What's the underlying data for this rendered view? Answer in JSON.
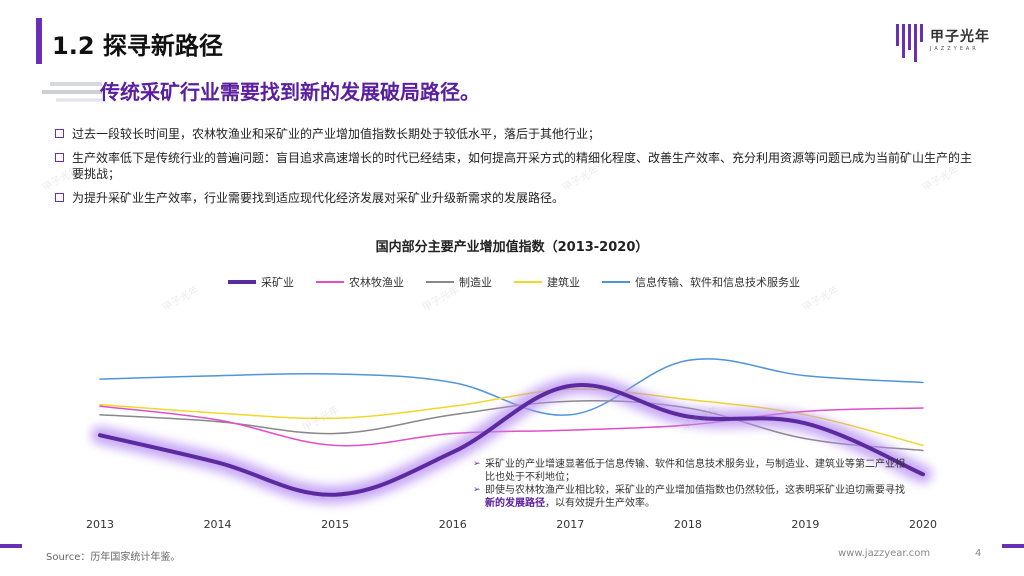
{
  "header": {
    "section_title": "1.2 探寻新路径",
    "logo_text": "甲子光年",
    "logo_sub": "JAZZYEAR"
  },
  "headline": "传统采矿行业需要找到新的发展破局路径。",
  "bullets": [
    "过去一段较长时间里，农林牧渔业和采矿业的产业增加值指数长期处于较低水平，落后于其他行业；",
    "生产效率低下是传统行业的普遍问题：盲目追求高速增长的时代已经结束，如何提高开采方式的精细化程度、改善生产效率、充分利用资源等问题已成为当前矿山生产的主要挑战；",
    "为提升采矿业生产效率，行业需要找到适应现代化经济发展对采矿业升级新需求的发展路径。"
  ],
  "notes": {
    "item1": "采矿业的产业增速显著低于信息传输、软件和信息技术服务业，与制造业、建筑业等第二产业相比也处于不利地位；",
    "item2_pre": "即使与农林牧渔产业相比较，采矿业的产业增加值指数也仍然较低，这表明采矿业迫切需要寻找",
    "item2_hl": "新的发展路径",
    "item2_post": "，以有效提升生产效率。"
  },
  "chart_data": {
    "type": "line",
    "title": "国内部分主要产业增加值指数（2013-2020）",
    "categories": [
      "2013",
      "2014",
      "2015",
      "2016",
      "2017",
      "2018",
      "2019",
      "2020"
    ],
    "xlabel": "",
    "ylabel": "",
    "ylim": [
      0,
      100
    ],
    "grid": false,
    "legend_position": "top",
    "series": [
      {
        "name": "采矿业",
        "color": "#5b2a9e",
        "highlight": true,
        "values": [
          44,
          28,
          9,
          34,
          73,
          55,
          51,
          21
        ]
      },
      {
        "name": "农林牧渔业",
        "color": "#e04fc8",
        "values": [
          61,
          53,
          38,
          45,
          47,
          50,
          58,
          60
        ]
      },
      {
        "name": "制造业",
        "color": "#888888",
        "values": [
          56,
          52,
          45,
          56,
          64,
          60,
          42,
          35
        ]
      },
      {
        "name": "建筑业",
        "color": "#f2d72a",
        "values": [
          62,
          57,
          54,
          61,
          71,
          65,
          56,
          38
        ]
      },
      {
        "name": "信息传输、软件和信息技术服务业",
        "color": "#4f94d9",
        "values": [
          77,
          79,
          80,
          75,
          56,
          88,
          79,
          75
        ]
      }
    ]
  },
  "footer": {
    "source": "Source：历年国家统计年鉴。",
    "site": "www.jazzyear.com",
    "page": "4"
  },
  "watermark": "甲子光年"
}
